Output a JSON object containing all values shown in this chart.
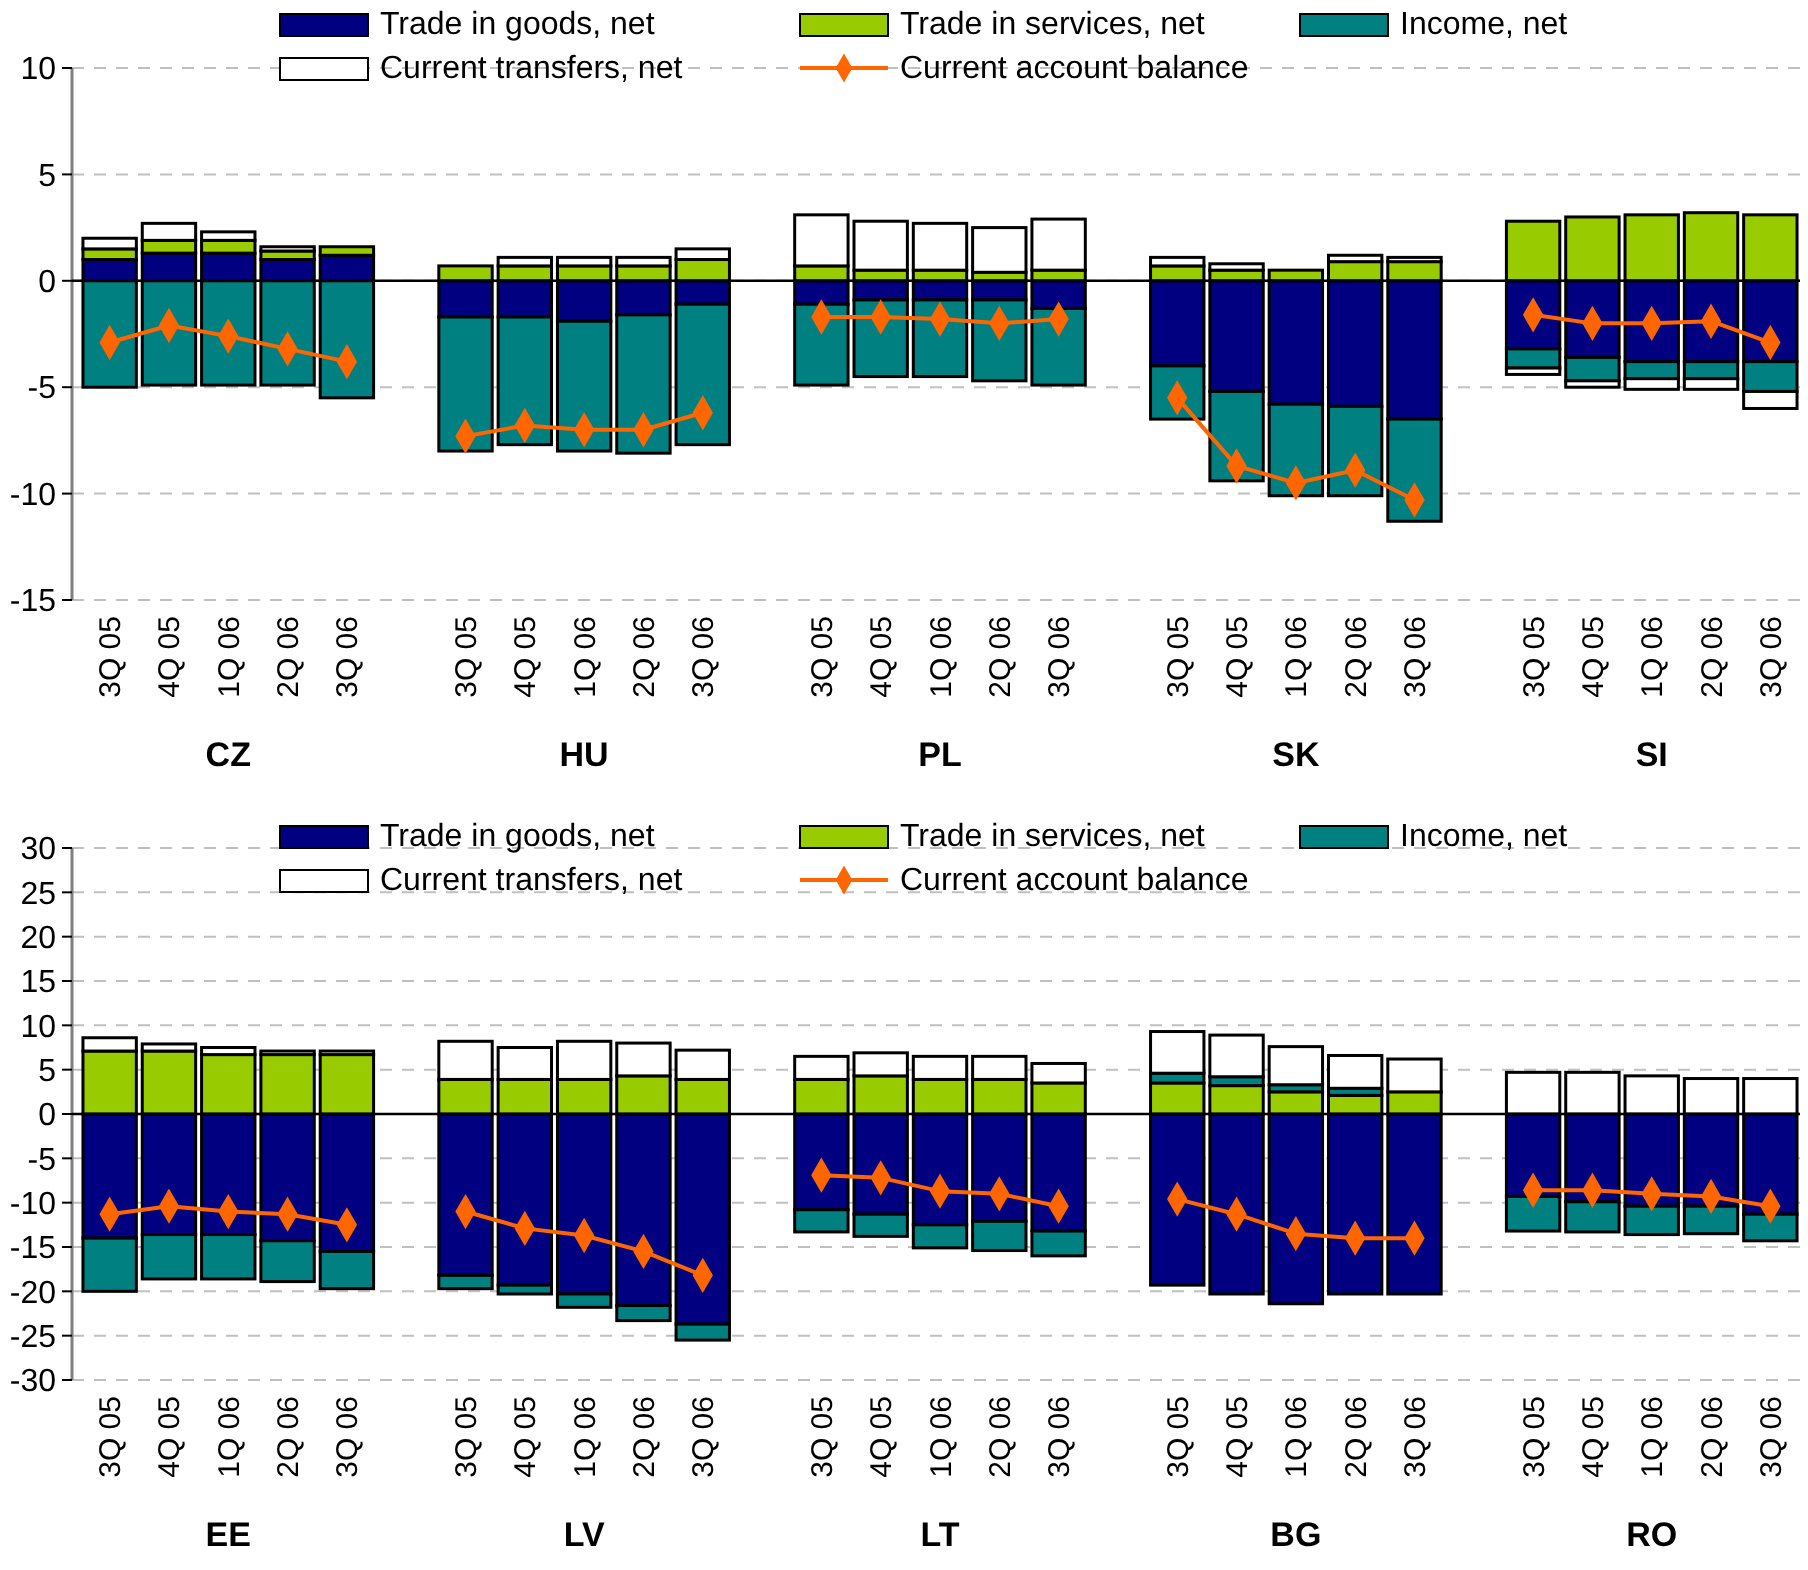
{
  "chart_data": [
    {
      "type": "bar",
      "stacked": true,
      "legend": "top",
      "grid": "y",
      "ylim": [
        -15,
        10
      ],
      "yticks": [
        -15,
        -10,
        -5,
        0,
        5,
        10
      ],
      "categories": [
        "3Q 05",
        "4Q 05",
        "1Q 06",
        "2Q 06",
        "3Q 06",
        null,
        "3Q 05",
        "4Q 05",
        "1Q 06",
        "2Q 06",
        "3Q 06",
        null,
        "3Q 05",
        "4Q 05",
        "1Q 06",
        "2Q 06",
        "3Q 06",
        null,
        "3Q 05",
        "4Q 05",
        "1Q 06",
        "2Q 06",
        "3Q 06",
        null,
        "3Q 05",
        "4Q 05",
        "1Q 06",
        "2Q 06",
        "3Q 06"
      ],
      "annotations": [
        "CZ",
        "HU",
        "PL",
        "SK",
        "SI"
      ],
      "series": [
        {
          "name": "Trade in goods, net",
          "type": "bar",
          "color": "#000080",
          "values": [
            1.0,
            1.3,
            1.3,
            1.0,
            1.2,
            null,
            -1.7,
            -1.7,
            -1.9,
            -1.6,
            -1.1,
            null,
            -1.1,
            -0.9,
            -0.9,
            -0.9,
            -1.3,
            null,
            -4.0,
            -5.2,
            -5.8,
            -5.9,
            -6.5,
            null,
            -3.2,
            -3.6,
            -3.8,
            -3.8,
            -3.8
          ]
        },
        {
          "name": "Trade in services, net",
          "type": "bar",
          "color": "#99cc00",
          "values": [
            0.5,
            0.6,
            0.6,
            0.4,
            0.4,
            null,
            0.7,
            0.7,
            0.7,
            0.7,
            1.0,
            null,
            0.7,
            0.5,
            0.5,
            0.4,
            0.5,
            null,
            0.7,
            0.5,
            0.5,
            0.9,
            0.9,
            null,
            2.8,
            3.0,
            3.1,
            3.2,
            3.1
          ]
        },
        {
          "name": "Income, net",
          "type": "bar",
          "color": "#008080",
          "values": [
            -5.0,
            -4.9,
            -4.9,
            -4.9,
            -5.5,
            null,
            -6.3,
            -6.0,
            -6.1,
            -6.5,
            -6.6,
            null,
            -3.8,
            -3.6,
            -3.6,
            -3.8,
            -3.6,
            null,
            -2.5,
            -4.2,
            -4.3,
            -4.2,
            -4.8,
            null,
            -0.9,
            -1.1,
            -0.8,
            -0.8,
            -1.4
          ]
        },
        {
          "name": "Current transfers, net",
          "type": "bar",
          "color": "#ffffff",
          "values": [
            0.5,
            0.8,
            0.4,
            0.2,
            null,
            null,
            null,
            0.4,
            0.4,
            0.4,
            0.5,
            null,
            2.4,
            2.3,
            2.2,
            2.1,
            2.4,
            null,
            0.4,
            0.3,
            null,
            0.3,
            0.2,
            null,
            -0.3,
            -0.3,
            -0.5,
            -0.5,
            -0.8
          ]
        },
        {
          "name": "Current account balance",
          "type": "line",
          "color": "#ff6600",
          "marker": "diamond",
          "line_style": "solid",
          "values": [
            -2.9,
            -2.1,
            -2.6,
            -3.2,
            -3.8,
            null,
            -7.3,
            -6.8,
            -7.0,
            -7.0,
            -6.2,
            null,
            -1.7,
            -1.7,
            -1.8,
            -2.0,
            -1.8,
            null,
            -5.5,
            -8.7,
            -9.5,
            -8.9,
            -10.3,
            null,
            -1.6,
            -2.0,
            -2.0,
            -1.9,
            -2.9
          ]
        }
      ]
    },
    {
      "type": "bar",
      "stacked": true,
      "legend": "top",
      "grid": "y",
      "ylim": [
        -30,
        30
      ],
      "yticks": [
        -30,
        -25,
        -20,
        -15,
        -10,
        -5,
        0,
        5,
        10,
        15,
        20,
        25,
        30
      ],
      "categories": [
        "3Q 05",
        "4Q 05",
        "1Q 06",
        "2Q 06",
        "3Q 06",
        null,
        "3Q 05",
        "4Q 05",
        "1Q 06",
        "2Q 06",
        "3Q 06",
        null,
        "3Q 05",
        "4Q 05",
        "1Q 06",
        "2Q 06",
        "3Q 06",
        null,
        "3Q 05",
        "4Q 05",
        "1Q 06",
        "2Q 06",
        "3Q 06",
        null,
        "3Q 05",
        "4Q 05",
        "1Q 06",
        "2Q 06",
        "3Q 06"
      ],
      "annotations": [
        "EE",
        "LV",
        "LT",
        "BG",
        "RO"
      ],
      "series": [
        {
          "name": "Trade in goods, net",
          "type": "bar",
          "color": "#000080",
          "values": [
            -14.0,
            -13.6,
            -13.6,
            -14.3,
            -15.5,
            null,
            -18.2,
            -19.3,
            -20.3,
            -21.6,
            -23.7,
            null,
            -10.8,
            -11.3,
            -12.5,
            -12.1,
            -13.2,
            null,
            -19.3,
            -20.3,
            -21.4,
            -20.3,
            -20.3,
            null,
            -9.3,
            -9.9,
            -10.4,
            -10.4,
            -11.3
          ]
        },
        {
          "name": "Trade in services, net",
          "type": "bar",
          "color": "#99cc00",
          "values": [
            7.1,
            7.1,
            6.7,
            6.7,
            6.7,
            null,
            3.9,
            3.9,
            3.9,
            4.3,
            3.9,
            null,
            3.9,
            4.3,
            3.9,
            3.9,
            3.5,
            null,
            3.5,
            3.2,
            2.5,
            2.1,
            2.5,
            null,
            null,
            null,
            null,
            null,
            null
          ]
        },
        {
          "name": "Income, net",
          "type": "bar",
          "color": "#008080",
          "values": [
            -6.0,
            -5.0,
            -5.0,
            -4.6,
            -4.2,
            null,
            -1.5,
            -1.0,
            -1.5,
            -1.7,
            -1.8,
            null,
            -2.5,
            -2.5,
            -2.6,
            -3.3,
            -2.8,
            null,
            1.1,
            1.0,
            0.8,
            0.8,
            null,
            null,
            -3.9,
            -3.4,
            -3.2,
            -3.1,
            -3.0
          ]
        },
        {
          "name": "Current transfers, net",
          "type": "bar",
          "color": "#ffffff",
          "values": [
            1.5,
            0.8,
            0.8,
            0.4,
            0.4,
            null,
            4.3,
            3.6,
            4.3,
            3.7,
            3.3,
            null,
            2.6,
            2.6,
            2.6,
            2.6,
            2.2,
            null,
            4.7,
            4.7,
            4.3,
            3.7,
            3.7,
            null,
            4.7,
            4.7,
            4.3,
            4.0,
            4.0
          ]
        },
        {
          "name": "Current account balance",
          "type": "line",
          "color": "#ff6600",
          "marker": "diamond",
          "line_style": "solid",
          "values": [
            -11.3,
            -10.4,
            -11.0,
            -11.3,
            -12.5,
            null,
            -11.0,
            -12.9,
            -13.7,
            -15.5,
            -18.2,
            null,
            -6.9,
            -7.2,
            -8.7,
            -9.0,
            -10.4,
            null,
            -9.6,
            -11.3,
            -13.5,
            -14.0,
            -14.0,
            null,
            -8.6,
            -8.6,
            -9.0,
            -9.3,
            -10.4
          ]
        }
      ]
    }
  ]
}
